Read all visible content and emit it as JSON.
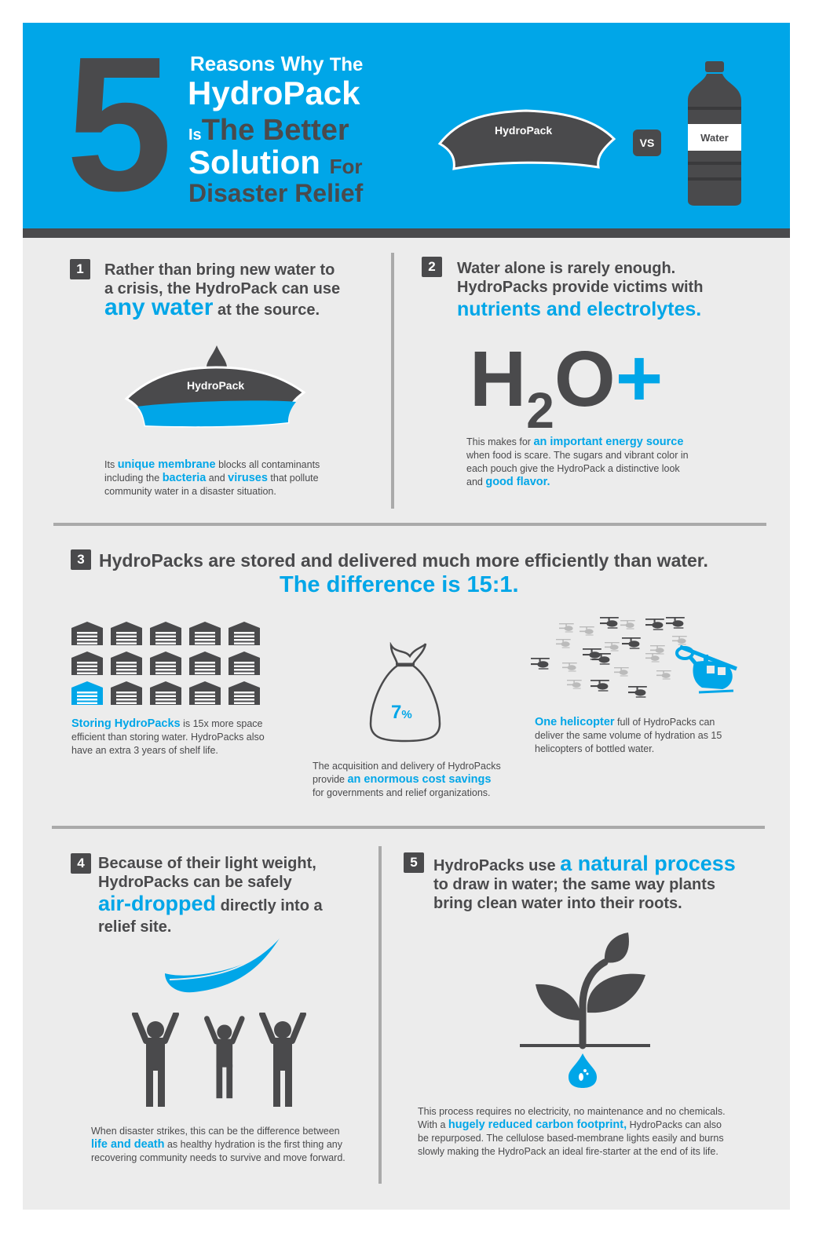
{
  "header": {
    "big_number": "5",
    "title_line1_a": "Reasons Why",
    "title_line1_b": "The",
    "title_line2": "HydroPack",
    "title_line3_a": "Is",
    "title_line3_b": "The Better",
    "title_line4_a": "Solution",
    "title_line4_b": "For",
    "title_line5": "Disaster Relief",
    "pack_label": "HydroPack",
    "vs_label": "VS",
    "bottle_label": "Water"
  },
  "reason1": {
    "number": "1",
    "line1": "Rather than bring new water to",
    "line2": "a crisis, the HydroPack can use",
    "highlight": "any water",
    "line3_rest": "at the source.",
    "pack_label": "HydroPack",
    "desc_a": "Its",
    "desc_em1": "unique membrane",
    "desc_b": "blocks all contaminants",
    "desc_c": "including the",
    "desc_em2": "bacteria",
    "desc_d": "and",
    "desc_em3": "viruses",
    "desc_e": "that pollute",
    "desc_f": "community water in a disaster situation."
  },
  "reason2": {
    "number": "2",
    "line1": "Water alone is rarely enough.",
    "line2": "HydroPacks provide victims with",
    "highlight": "nutrients and electrolytes.",
    "formula_h": "H",
    "formula_sub": "2",
    "formula_o": "O",
    "formula_plus": "+",
    "desc_a": "This makes for",
    "desc_em1": "an important energy source",
    "desc_b": "when food is scare. The sugars and vibrant color in",
    "desc_c": "each pouch give the HydroPack a distinctive look",
    "desc_d": "and",
    "desc_em2": "good flavor."
  },
  "reason3": {
    "number": "3",
    "headline": "HydroPacks are stored and delivered much more efficiently than water.",
    "difference": "The difference is 15:1.",
    "storage_em": "Storing HydroPacks",
    "storage_a": "is 15x more space",
    "storage_b": "efficient than storing water. HydroPacks also",
    "storage_c": "have an extra 3 years of shelf life.",
    "bag_percent": "7",
    "bag_percent_sign": "%",
    "cost_a": "The acquisition and delivery of HydroPacks",
    "cost_b": "provide",
    "cost_em": "an enormous cost savings",
    "cost_c": "for governments and relief organizations.",
    "heli_em": "One helicopter",
    "heli_a": "full of HydroPacks can",
    "heli_b": "deliver the same volume of hydration as 15",
    "heli_c": "helicopters of bottled water."
  },
  "reason4": {
    "number": "4",
    "line1": "Because of their light weight,",
    "line2": "HydroPacks can be safely",
    "highlight": "air-dropped",
    "line3_rest": "directly into a",
    "line4": "relief site.",
    "desc_a": "When disaster strikes, this can be the difference between",
    "desc_em": "life and death",
    "desc_b": "as healthy hydration is the first thing any",
    "desc_c": "recovering community needs to survive and move forward."
  },
  "reason5": {
    "number": "5",
    "line1_a": "HydroPacks use",
    "highlight": "a natural process",
    "line2": "to draw in water; the same way plants",
    "line3": "bring clean water into their roots.",
    "desc_a": "This process requires no electricity, no maintenance and no chemicals.",
    "desc_b": "With a",
    "desc_em": "hugely reduced carbon footprint,",
    "desc_c": "HydroPacks can also",
    "desc_d": "be repurposed. The cellulose based-membrane lights easily and burns",
    "desc_e": "slowly making the HydroPack an ideal fire-starter at the end of its life."
  },
  "colors": {
    "accent": "#00a6e8",
    "dark": "#4a4a4c",
    "panel": "#ececec",
    "divider": "#aaaaaa"
  }
}
